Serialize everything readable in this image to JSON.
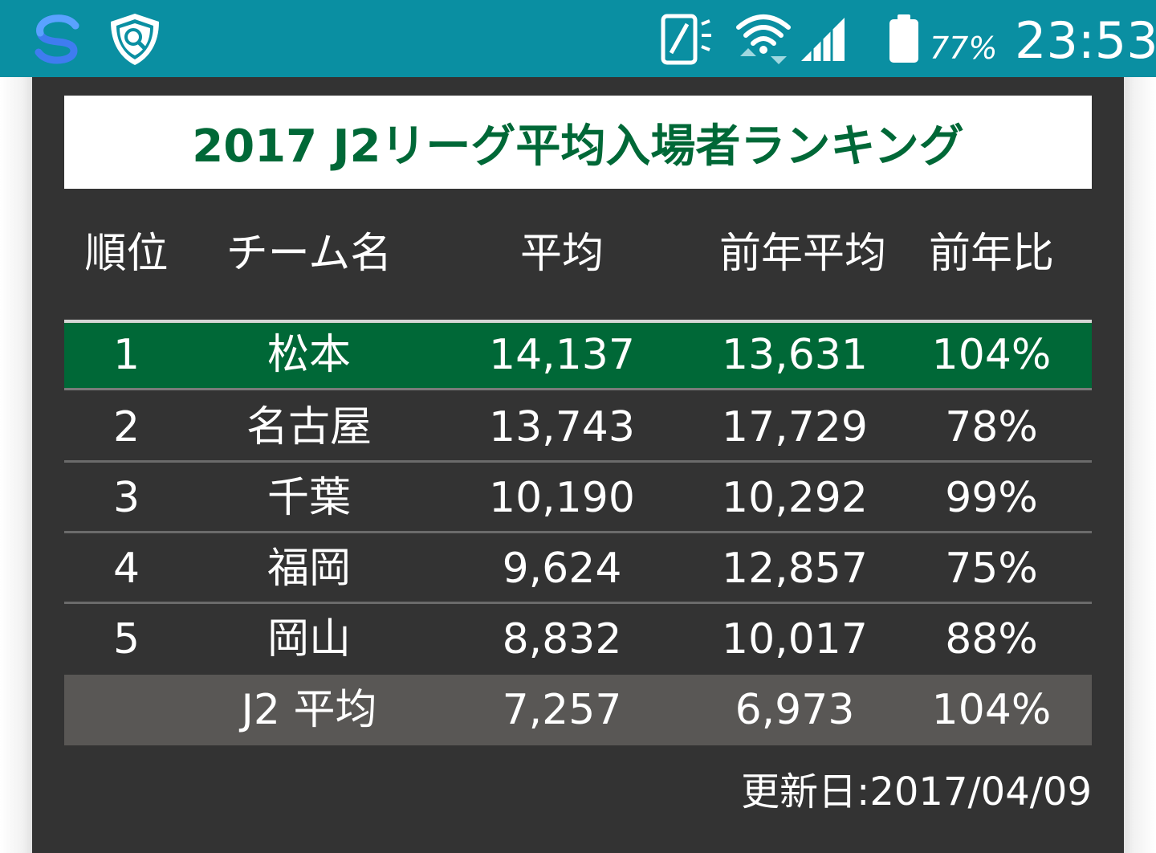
{
  "status_bar": {
    "battery_percent": "77%",
    "time": "23:53",
    "bg_color": "#0a8fa2",
    "icons": [
      "s-app-icon",
      "shield-search-icon",
      "vibrate-rotate-icon",
      "wifi-icon",
      "cell-signal-icon",
      "battery-icon"
    ]
  },
  "panel": {
    "title": "2017 J2リーグ平均入場者ランキング",
    "headers": [
      "順位",
      "チーム名",
      "平均",
      "前年平均",
      "前年比"
    ],
    "rows": [
      {
        "rank": "1",
        "team": "松本",
        "avg": "14,137",
        "prev_avg": "13,631",
        "ratio": "104%"
      },
      {
        "rank": "2",
        "team": "名古屋",
        "avg": "13,743",
        "prev_avg": "17,729",
        "ratio": "78%"
      },
      {
        "rank": "3",
        "team": "千葉",
        "avg": "10,190",
        "prev_avg": "10,292",
        "ratio": "99%"
      },
      {
        "rank": "4",
        "team": "福岡",
        "avg": "9,624",
        "prev_avg": "12,857",
        "ratio": "75%"
      },
      {
        "rank": "5",
        "team": "岡山",
        "avg": "8,832",
        "prev_avg": "10,017",
        "ratio": "88%"
      }
    ],
    "average_row": {
      "rank": "",
      "team": "J2 平均",
      "avg": "7,257",
      "prev_avg": "6,973",
      "ratio": "104%"
    },
    "updated": "更新日:2017/04/09",
    "colors": {
      "title": "#006837",
      "highlight_row": "#006837",
      "average_row": "#595755",
      "panel_bg": "#333333"
    }
  }
}
